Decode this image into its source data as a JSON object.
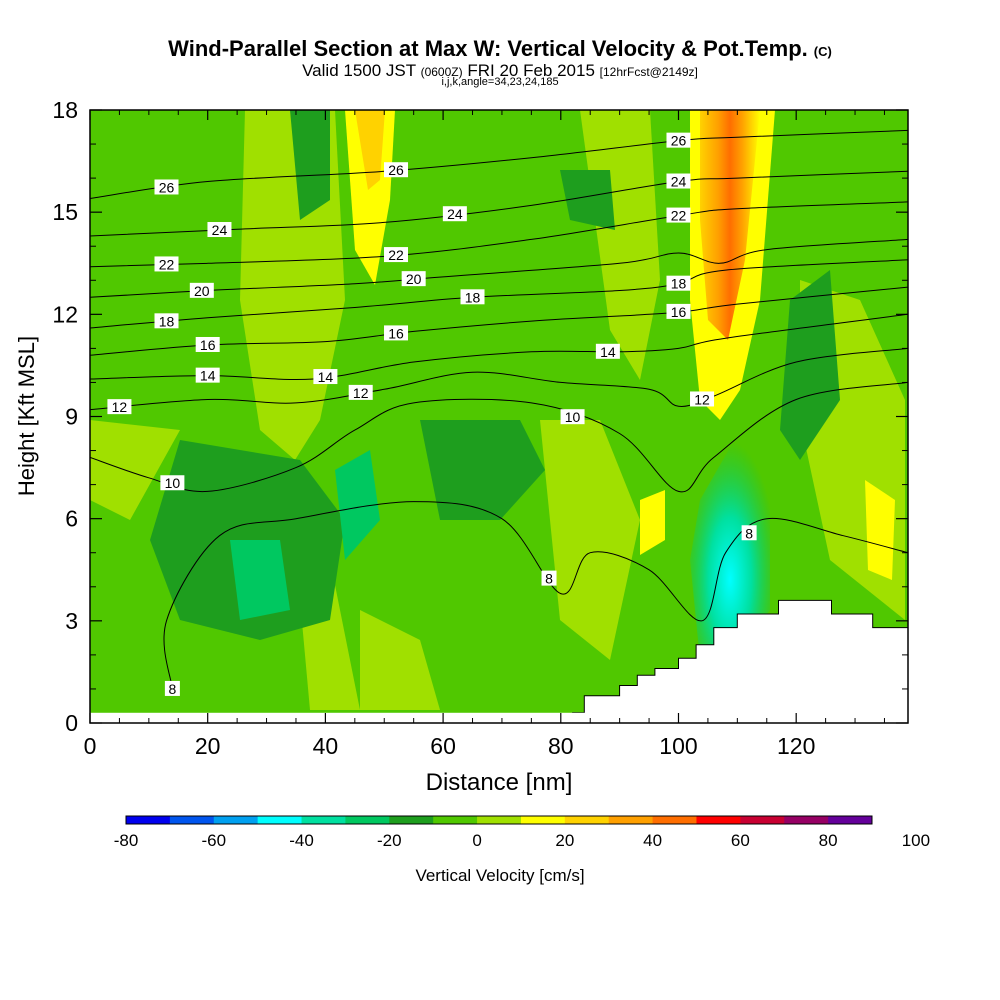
{
  "header": {
    "title": "Wind-Parallel Section at Max W: Vertical Velocity & Pot.Temp.",
    "copyright": "(C)",
    "valid_prefix": "Valid 1500 JST",
    "valid_utc": "(0600Z)",
    "valid_date": "FRI 20 Feb 2015",
    "forecast": "[12hrFcst@2149z]",
    "indices": "i,j,k,angle=34,23,24,185"
  },
  "colorbar": {
    "label": "Vertical Velocity [cm/s]",
    "ticks": [
      "-80",
      "-60",
      "-40",
      "-20",
      "0",
      "20",
      "40",
      "60",
      "80",
      "100"
    ],
    "colors": [
      "#0000ee",
      "#0055ee",
      "#00a0f0",
      "#00ffff",
      "#00e0a0",
      "#00c860",
      "#1e9e1e",
      "#50c800",
      "#a0e000",
      "#ffff00",
      "#ffd200",
      "#ffa000",
      "#ff6e00",
      "#ff0000",
      "#c80032",
      "#960064",
      "#64009a"
    ]
  },
  "chart_data": {
    "type": "heatmap",
    "xlabel": "Distance [nm]",
    "ylabel": "Height [Kft MSL]",
    "xlim": [
      0,
      139
    ],
    "ylim": [
      0,
      18
    ],
    "xticks": [
      "0",
      "20",
      "40",
      "60",
      "80",
      "100",
      "120"
    ],
    "yticks": [
      "0",
      "3",
      "6",
      "9",
      "12",
      "15",
      "18"
    ],
    "field": "vertical velocity (cm/s)",
    "velocity_features": [
      {
        "x": 48,
        "y_range": [
          12,
          18
        ],
        "w_cm_s": 20
      },
      {
        "x": 106,
        "y_range": [
          11,
          18
        ],
        "w_cm_s": 60
      },
      {
        "x": 110,
        "y_range": [
          1,
          7
        ],
        "w_cm_s": -40
      },
      {
        "x": 47,
        "y_range": [
          5,
          8
        ],
        "w_cm_s": -30
      },
      {
        "x": 26,
        "y_range": [
          3,
          6
        ],
        "w_cm_s": -30
      },
      {
        "x": 136,
        "y_range": [
          4,
          7
        ],
        "w_cm_s": 20
      },
      {
        "x": 97,
        "y_range": [
          5,
          6.5
        ],
        "w_cm_s": 20
      }
    ],
    "contours": [
      {
        "level": "8",
        "points": [
          [
            14,
            1
          ],
          [
            13,
            3
          ],
          [
            22,
            5.5
          ],
          [
            35,
            6
          ],
          [
            55,
            6.5
          ],
          [
            70,
            6
          ],
          [
            80,
            3.8
          ],
          [
            85,
            5
          ],
          [
            95,
            4.5
          ],
          [
            104,
            3
          ],
          [
            108,
            5
          ],
          [
            115,
            6
          ],
          [
            128,
            5.5
          ],
          [
            139,
            5
          ]
        ]
      },
      {
        "level": "10",
        "points": [
          [
            0,
            7.8
          ],
          [
            10,
            7.2
          ],
          [
            20,
            6.8
          ],
          [
            35,
            7.5
          ],
          [
            45,
            8.6
          ],
          [
            55,
            9.4
          ],
          [
            75,
            9.4
          ],
          [
            90,
            8.5
          ],
          [
            100,
            6.8
          ],
          [
            106,
            7.8
          ],
          [
            120,
            9.5
          ],
          [
            139,
            10
          ]
        ]
      },
      {
        "level": "12",
        "points": [
          [
            0,
            9.2
          ],
          [
            20,
            9.5
          ],
          [
            35,
            9.4
          ],
          [
            50,
            9.8
          ],
          [
            65,
            10.3
          ],
          [
            80,
            10
          ],
          [
            95,
            9.8
          ],
          [
            100,
            9.3
          ],
          [
            106,
            9.6
          ],
          [
            120,
            10.6
          ],
          [
            139,
            11
          ]
        ]
      },
      {
        "level": "14",
        "points": [
          [
            0,
            10.1
          ],
          [
            20,
            10.2
          ],
          [
            38,
            10.1
          ],
          [
            55,
            10.6
          ],
          [
            75,
            10.9
          ],
          [
            90,
            10.9
          ],
          [
            100,
            11
          ],
          [
            108,
            11.3
          ],
          [
            139,
            12
          ]
        ]
      },
      {
        "level": "16",
        "points": [
          [
            0,
            10.8
          ],
          [
            20,
            11.1
          ],
          [
            40,
            11.2
          ],
          [
            55,
            11.5
          ],
          [
            75,
            11.8
          ],
          [
            95,
            12
          ],
          [
            102,
            12.1
          ],
          [
            110,
            12.3
          ],
          [
            139,
            12.8
          ]
        ]
      },
      {
        "level": "18",
        "points": [
          [
            0,
            11.6
          ],
          [
            20,
            11.9
          ],
          [
            45,
            12.2
          ],
          [
            65,
            12.5
          ],
          [
            90,
            12.7
          ],
          [
            100,
            12.9
          ],
          [
            108,
            13.3
          ],
          [
            139,
            13.6
          ]
        ]
      },
      {
        "level": "20",
        "points": [
          [
            0,
            12.5
          ],
          [
            20,
            12.7
          ],
          [
            45,
            12.9
          ],
          [
            60,
            13.1
          ],
          [
            90,
            13.5
          ],
          [
            100,
            13.8
          ],
          [
            107,
            13.5
          ],
          [
            115,
            13.9
          ],
          [
            139,
            14.2
          ]
        ]
      },
      {
        "level": "22",
        "points": [
          [
            0,
            13.4
          ],
          [
            20,
            13.5
          ],
          [
            50,
            13.7
          ],
          [
            75,
            14.2
          ],
          [
            100,
            14.9
          ],
          [
            110,
            15.1
          ],
          [
            139,
            15.3
          ]
        ]
      },
      {
        "level": "24",
        "points": [
          [
            0,
            14.3
          ],
          [
            25,
            14.5
          ],
          [
            50,
            14.7
          ],
          [
            75,
            15.2
          ],
          [
            100,
            15.9
          ],
          [
            110,
            16
          ],
          [
            139,
            16.2
          ]
        ]
      },
      {
        "level": "26",
        "points": [
          [
            0,
            15.4
          ],
          [
            20,
            15.9
          ],
          [
            50,
            16.2
          ],
          [
            75,
            16.6
          ],
          [
            100,
            17.1
          ],
          [
            110,
            17.2
          ],
          [
            139,
            17.4
          ]
        ]
      }
    ],
    "terrain": [
      [
        75,
        0
      ],
      [
        82,
        0
      ],
      [
        82,
        0.3
      ],
      [
        84,
        0.3
      ],
      [
        84,
        0.8
      ],
      [
        90,
        0.8
      ],
      [
        90,
        1.1
      ],
      [
        93,
        1.1
      ],
      [
        93,
        1.4
      ],
      [
        96,
        1.4
      ],
      [
        96,
        1.6
      ],
      [
        100,
        1.6
      ],
      [
        100,
        1.9
      ],
      [
        103,
        1.9
      ],
      [
        103,
        2.3
      ],
      [
        106,
        2.3
      ],
      [
        106,
        2.8
      ],
      [
        110,
        2.8
      ],
      [
        110,
        3.2
      ],
      [
        117,
        3.2
      ],
      [
        117,
        3.6
      ],
      [
        126,
        3.6
      ],
      [
        126,
        3.2
      ],
      [
        133,
        3.2
      ],
      [
        133,
        2.8
      ],
      [
        139,
        2.8
      ],
      [
        139,
        0
      ]
    ]
  }
}
